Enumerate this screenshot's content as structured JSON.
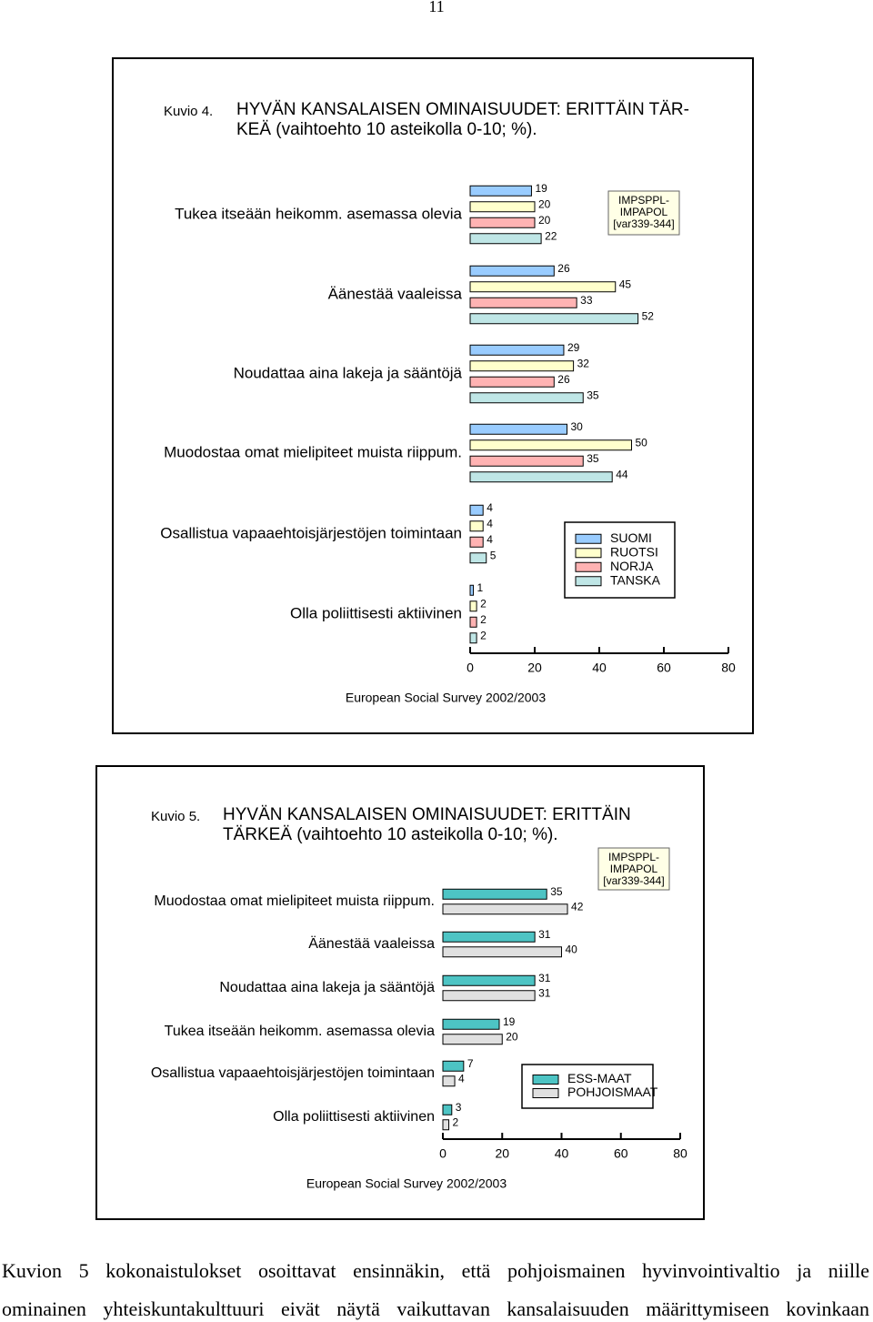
{
  "page_number": "11",
  "chart_data": [
    {
      "type": "bar",
      "orientation": "horizontal",
      "figure_label": "Kuvio 4.",
      "title": [
        "HYVÄN KANSALAISEN OMINAISUUDET: ERITTÄIN TÄR-",
        "KEÄ (vaihtoehto 10 asteikolla 0-10; %)."
      ],
      "annotation": [
        "IMPSPPL-",
        "IMPAPOL",
        "[var339-344]"
      ],
      "source": "European Social Survey 2002/2003",
      "categories": [
        "Tukea itseään heikomm. asemassa olevia",
        "Äänestää vaaleissa",
        "Noudattaa aina lakeja ja sääntöjä",
        "Muodostaa omat mielipiteet muista riippum.",
        "Osallistua vapaaehtoisjärjestöjen toimintaan",
        "Olla poliittisesti aktiivinen"
      ],
      "series": [
        {
          "name": "SUOMI",
          "color": "#99ccff",
          "values": [
            19,
            26,
            29,
            30,
            4,
            1
          ]
        },
        {
          "name": "RUOTSI",
          "color": "#ffffcc",
          "values": [
            20,
            45,
            32,
            50,
            4,
            2
          ]
        },
        {
          "name": "NORJA",
          "color": "#ffb3b3",
          "values": [
            20,
            33,
            26,
            35,
            4,
            2
          ]
        },
        {
          "name": "TANSKA",
          "color": "#bfe6e6",
          "values": [
            22,
            52,
            35,
            44,
            5,
            2
          ]
        }
      ],
      "xlim": [
        0,
        80
      ],
      "xticks": [
        0,
        20,
        40,
        60,
        80
      ]
    },
    {
      "type": "bar",
      "orientation": "horizontal",
      "figure_label": "Kuvio 5.",
      "title": [
        "HYVÄN KANSALAISEN OMINAISUUDET: ERITTÄIN",
        "TÄRKEÄ (vaihtoehto 10 asteikolla 0-10; %)."
      ],
      "annotation": [
        "IMPSPPL-",
        "IMPAPOL",
        "[var339-344]"
      ],
      "source": "European Social Survey 2002/2003",
      "categories": [
        "Muodostaa omat mielipiteet muista riippum.",
        "Äänestää vaaleissa",
        "Noudattaa aina lakeja ja sääntöjä",
        "Tukea itseään heikomm. asemassa olevia",
        "Osallistua vapaaehtoisjärjestöjen toimintaan",
        "Olla poliittisesti aktiivinen"
      ],
      "series": [
        {
          "name": "ESS-MAAT",
          "color": "#4dc4c4",
          "values": [
            35,
            31,
            31,
            19,
            7,
            3
          ]
        },
        {
          "name": "POHJOISMAAT",
          "color": "#e0e0e0",
          "values": [
            42,
            40,
            31,
            20,
            4,
            2
          ]
        }
      ],
      "xlim": [
        0,
        80
      ],
      "xticks": [
        0,
        20,
        40,
        60,
        80
      ]
    }
  ],
  "body_text": [
    "Kuvion 5 kokonaistulokset osoittavat ensinnäkin, että pohjoismainen hyvinvointivaltio ja niille",
    "ominainen yhteiskuntakulttuuri eivät näytä vaikuttavan kansalaisuuden määrittymiseen kovinkaan"
  ]
}
